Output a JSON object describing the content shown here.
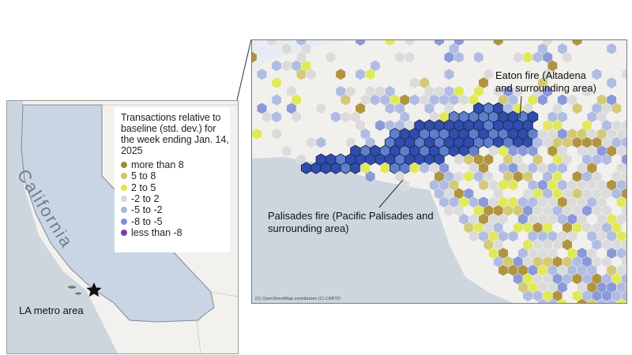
{
  "legend": {
    "title": "Transactions relative to baseline (std. dev.) for the week ending Jan. 14, 2025",
    "items": [
      {
        "label": "more than 8",
        "color": "#a8892e"
      },
      {
        "label": "5 to 8",
        "color": "#cfc56b"
      },
      {
        "label": "2 to 5",
        "color": "#dde84a"
      },
      {
        "label": "-2 to 2",
        "color": "#d8d8d8"
      },
      {
        "label": "-5 to -2",
        "color": "#aab6e0"
      },
      {
        "label": "-8 to -5",
        "color": "#7f8fd6"
      },
      {
        "label": "less than -8",
        "color": "#7a3fb0"
      }
    ]
  },
  "inset": {
    "state_label": "California",
    "location_label": "LA metro area",
    "marker_icon": "star-icon"
  },
  "detail": {
    "eaton_label": "Eaton fire (Altadena and surrounding area)",
    "palisades_label": "Palisades fire (Pacific Palisades and surrounding area)",
    "attribution": "(C) OpenStreetMap contributors (C) CARTO"
  },
  "colors": {
    "fire_border": "#1f2a44",
    "fire_fill_dark": "#2f4cae",
    "fire_fill_mid": "#5d7fd0",
    "ocean": "#cdd6df",
    "land": "#f2f0ed"
  }
}
